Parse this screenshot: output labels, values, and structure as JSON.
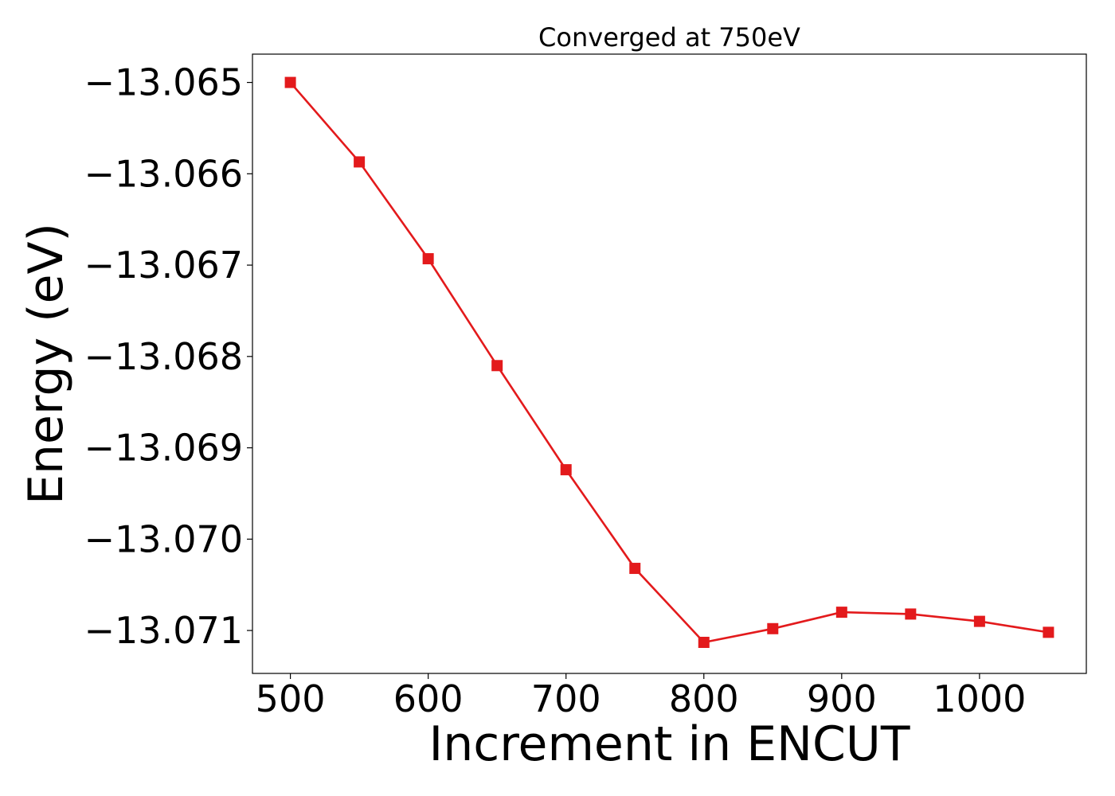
{
  "chart_data": {
    "type": "line",
    "title": "Converged at 750eV",
    "xlabel": "Increment in ENCUT",
    "ylabel": "Energy (eV)",
    "xlim": [
      472.5,
      1077.5
    ],
    "ylim": [
      -13.07147,
      -13.06469
    ],
    "xticks": [
      500,
      600,
      700,
      800,
      900,
      1000
    ],
    "xtick_labels": [
      "500",
      "600",
      "700",
      "800",
      "900",
      "1000"
    ],
    "yticks": [
      -13.065,
      -13.066,
      -13.067,
      -13.068,
      -13.069,
      -13.07,
      -13.071
    ],
    "ytick_labels": [
      "−13.065",
      "−13.066",
      "−13.067",
      "−13.068",
      "−13.069",
      "−13.070",
      "−13.071"
    ],
    "grid": false,
    "series": [
      {
        "color": "#e31a1c",
        "marker": "square",
        "x": [
          500,
          550,
          600,
          650,
          700,
          750,
          800,
          850,
          900,
          950,
          1000,
          1050
        ],
        "y": [
          -13.065,
          -13.06587,
          -13.06693,
          -13.0681,
          -13.06924,
          -13.07032,
          -13.07113,
          -13.07098,
          -13.0708,
          -13.07082,
          -13.0709,
          -13.07102
        ]
      }
    ]
  }
}
